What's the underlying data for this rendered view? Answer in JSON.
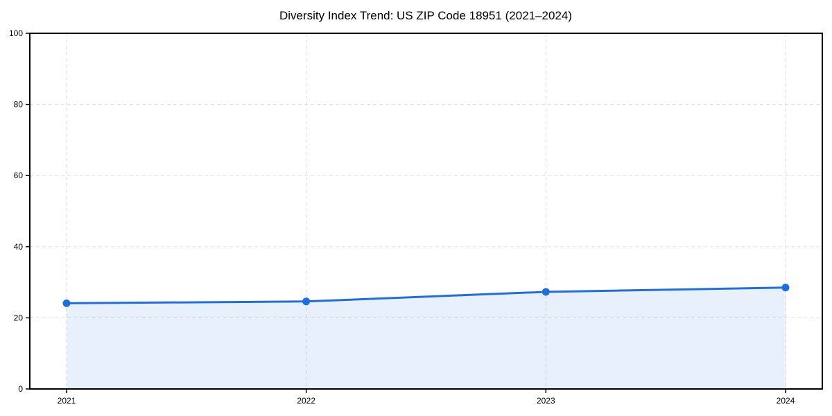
{
  "chart_data": {
    "type": "line",
    "title": "Diversity Index Trend: US ZIP Code 18951 (2021–2024)",
    "x": [
      "2021",
      "2022",
      "2023",
      "2024"
    ],
    "series": [
      {
        "name": "Diversity Index",
        "values": [
          24.1,
          24.6,
          27.3,
          28.5
        ]
      }
    ],
    "xlabel": "",
    "ylabel": "",
    "ylim": [
      0,
      100
    ],
    "yticks": [
      0,
      20,
      40,
      60,
      80,
      100
    ],
    "grid": "dashed-both",
    "legend": "none",
    "area_fill": true,
    "markers": true,
    "colors": {
      "line": "#1f6ee0",
      "marker": "#1f6ee0",
      "fill": "#1f6ee0",
      "fill_opacity": 0.1,
      "grid": "#e2e2e2",
      "axis": "#000000",
      "background": "#ffffff"
    }
  }
}
